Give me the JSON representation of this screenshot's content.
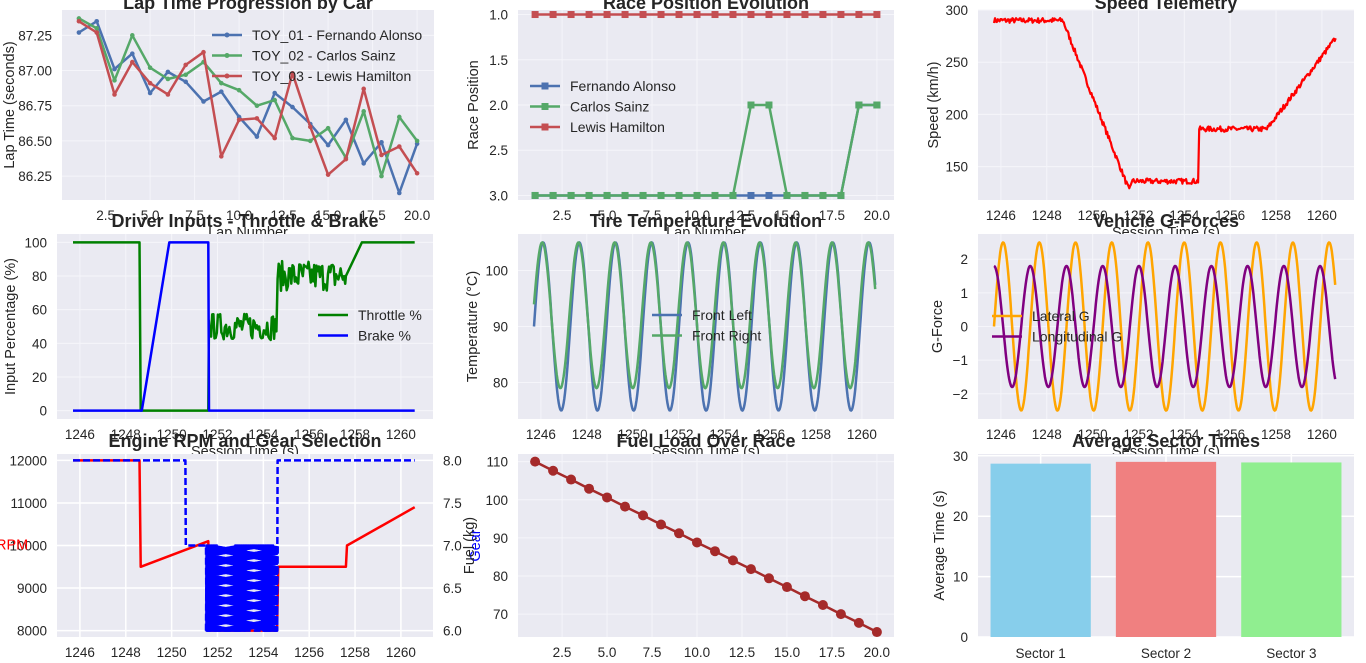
{
  "chart_data": [
    {
      "id": "lap_time",
      "type": "line",
      "title": "Lap Time Progression by Car",
      "xlabel": "Lap Number",
      "ylabel": "Lap Time (seconds)",
      "xlim": [
        0.05,
        20.95
      ],
      "ylim": [
        86.08,
        87.43
      ],
      "xticks": [
        2.5,
        5.0,
        7.5,
        10.0,
        12.5,
        15.0,
        17.5,
        20.0
      ],
      "yticks": [
        86.25,
        86.5,
        86.75,
        87.0,
        87.25
      ],
      "xtick_labels": [
        "2.5",
        "5.0",
        "7.5",
        "10.0",
        "12.5",
        "15.0",
        "17.5",
        "20.0"
      ],
      "ytick_labels": [
        "86.25",
        "86.50",
        "86.75",
        "87.00",
        "87.25"
      ],
      "legend": "top-right",
      "grid": true,
      "x": [
        1,
        2,
        3,
        4,
        5,
        6,
        7,
        8,
        9,
        10,
        11,
        12,
        13,
        14,
        15,
        16,
        17,
        18,
        19,
        20
      ],
      "series": [
        {
          "name": "TOY_01 - Fernando Alonso",
          "color": "#4c72b0",
          "marker": "circle",
          "values": [
            87.27,
            87.35,
            87.01,
            87.12,
            86.84,
            86.99,
            86.92,
            86.78,
            86.85,
            86.67,
            86.53,
            86.84,
            86.74,
            86.62,
            86.47,
            86.65,
            86.34,
            86.49,
            86.13,
            86.48
          ]
        },
        {
          "name": "TOY_02 - Carlos Sainz",
          "color": "#55a868",
          "marker": "circle",
          "values": [
            87.37,
            87.3,
            86.93,
            87.25,
            87.02,
            86.94,
            86.97,
            87.06,
            86.91,
            86.86,
            86.75,
            86.79,
            86.52,
            86.5,
            86.59,
            86.38,
            86.71,
            86.25,
            86.67,
            86.5
          ]
        },
        {
          "name": "TOY_03 - Lewis Hamilton",
          "color": "#c44e52",
          "marker": "circle",
          "values": [
            87.35,
            87.27,
            86.83,
            87.06,
            86.91,
            86.83,
            87.04,
            87.13,
            86.39,
            86.65,
            86.66,
            86.52,
            86.98,
            86.6,
            86.26,
            86.37,
            86.87,
            86.4,
            86.46,
            86.27
          ]
        }
      ]
    },
    {
      "id": "race_position",
      "type": "line",
      "title": "Race Position Evolution",
      "xlabel": "Lap Number",
      "ylabel": "Race Position",
      "xlim": [
        0.05,
        20.95
      ],
      "ylim": [
        3.05,
        0.95
      ],
      "inverted_y": true,
      "xticks": [
        2.5,
        5.0,
        7.5,
        10.0,
        12.5,
        15.0,
        17.5,
        20.0
      ],
      "yticks": [
        1.0,
        1.5,
        2.0,
        2.5,
        3.0
      ],
      "xtick_labels": [
        "2.5",
        "5.0",
        "7.5",
        "10.0",
        "12.5",
        "15.0",
        "17.5",
        "20.0"
      ],
      "ytick_labels": [
        "1.0",
        "1.5",
        "2.0",
        "2.5",
        "3.0"
      ],
      "legend": "center-left",
      "grid": true,
      "x": [
        1,
        2,
        3,
        4,
        5,
        6,
        7,
        8,
        9,
        10,
        11,
        12,
        13,
        14,
        15,
        16,
        17,
        18,
        19,
        20
      ],
      "series": [
        {
          "name": "Fernando Alonso",
          "color": "#4c72b0",
          "marker": "square",
          "values": [
            3,
            3,
            3,
            3,
            3,
            3,
            3,
            3,
            3,
            3,
            3,
            3,
            3,
            3,
            3,
            3,
            3,
            3,
            2,
            2
          ]
        },
        {
          "name": "Carlos Sainz",
          "color": "#55a868",
          "marker": "square",
          "values": [
            3,
            3,
            3,
            3,
            3,
            3,
            3,
            3,
            3,
            3,
            3,
            3,
            2,
            2,
            3,
            3,
            3,
            3,
            2,
            2
          ]
        },
        {
          "name": "Lewis Hamilton",
          "color": "#c44e52",
          "marker": "square",
          "values": [
            1,
            1,
            1,
            1,
            1,
            1,
            1,
            1,
            1,
            1,
            1,
            1,
            1,
            1,
            1,
            1,
            1,
            1,
            1,
            1
          ]
        }
      ]
    },
    {
      "id": "speed",
      "type": "line",
      "title": "Speed Telemetry",
      "xlabel": "Session Time (s)",
      "ylabel": "Speed (km/h)",
      "xlim": [
        1245.0,
        1261.4
      ],
      "ylim": [
        118,
        300
      ],
      "xticks": [
        1246,
        1248,
        1250,
        1252,
        1254,
        1256,
        1258,
        1260
      ],
      "yticks": [
        150,
        200,
        250,
        300
      ],
      "xtick_labels": [
        "1246",
        "1248",
        "1250",
        "1252",
        "1254",
        "1256",
        "1258",
        "1260"
      ],
      "ytick_labels": [
        "150",
        "200",
        "250",
        "300"
      ],
      "grid": true,
      "series": [
        {
          "name": "Speed",
          "color": "#ff0000",
          "points": [
            [
              1245.7,
              290
            ],
            [
              1248.7,
              290
            ],
            [
              1251.6,
              127
            ],
            [
              1251.7,
              136
            ],
            [
              1254.6,
              136
            ],
            [
              1254.65,
              186
            ],
            [
              1257.6,
              186
            ],
            [
              1260.6,
              273
            ]
          ],
          "noise": 2.5
        }
      ]
    },
    {
      "id": "driver_inputs",
      "type": "line",
      "title": "Driver Inputs - Throttle & Brake",
      "xlabel": "Session Time (s)",
      "ylabel": "Input Percentage (%)",
      "xlim": [
        1245.0,
        1261.4
      ],
      "ylim": [
        -5,
        105
      ],
      "xticks": [
        1246,
        1248,
        1250,
        1252,
        1254,
        1256,
        1258,
        1260
      ],
      "yticks": [
        0,
        20,
        40,
        60,
        80,
        100
      ],
      "xtick_labels": [
        "1246",
        "1248",
        "1250",
        "1252",
        "1254",
        "1256",
        "1258",
        "1260"
      ],
      "ytick_labels": [
        "0",
        "20",
        "40",
        "60",
        "80",
        "100"
      ],
      "legend": "center-right",
      "grid": true,
      "series": [
        {
          "name": "Throttle %",
          "color": "#008000",
          "segments": [
            {
              "points": [
                [
                  1245.7,
                  100
                ],
                [
                  1248.6,
                  100
                ],
                [
                  1248.65,
                  0
                ],
                [
                  1251.6,
                  0
                ],
                [
                  1251.62,
                  40
                ]
              ]
            },
            {
              "noisy": true,
              "from": 1251.62,
              "to": 1254.6,
              "center": 50,
              "amp": 8
            },
            {
              "noisy": true,
              "from": 1254.62,
              "to": 1257.6,
              "center": 80,
              "amp": 9
            },
            {
              "points": [
                [
                  1257.6,
                  80
                ],
                [
                  1258.3,
                  100
                ],
                [
                  1260.6,
                  100
                ]
              ]
            }
          ]
        },
        {
          "name": "Brake %",
          "color": "#0000ff",
          "segments": [
            {
              "points": [
                [
                  1245.7,
                  0
                ],
                [
                  1248.7,
                  0
                ],
                [
                  1249.9,
                  100
                ],
                [
                  1251.6,
                  100
                ],
                [
                  1251.63,
                  0
                ],
                [
                  1260.6,
                  0
                ]
              ]
            }
          ]
        }
      ]
    },
    {
      "id": "tire_temp",
      "type": "line",
      "title": "Tire Temperature Evolution",
      "xlabel": "Session Time (s)",
      "ylabel": "Temperature (°C)",
      "xlim": [
        1245.0,
        1261.4
      ],
      "ylim": [
        73.5,
        106.5
      ],
      "xticks": [
        1246,
        1248,
        1250,
        1252,
        1254,
        1256,
        1258,
        1260
      ],
      "yticks": [
        80,
        90,
        100
      ],
      "xtick_labels": [
        "1246",
        "1248",
        "1250",
        "1252",
        "1254",
        "1256",
        "1258",
        "1260"
      ],
      "ytick_labels": [
        "80",
        "90",
        "100"
      ],
      "legend": "center",
      "grid": true,
      "t_range": [
        1245.7,
        1260.6
      ],
      "series": [
        {
          "name": "Front Left",
          "color": "#4c72b0",
          "center": 90,
          "amp": 15,
          "period": 1.58
        },
        {
          "name": "Front Right",
          "color": "#55a868",
          "center": 92,
          "amp": 13,
          "period": 1.58
        }
      ]
    },
    {
      "id": "g_forces",
      "type": "line",
      "title": "Vehicle G-Forces",
      "xlabel": "Session Time (s)",
      "ylabel": "G-Force",
      "xlim": [
        1245.0,
        1261.4
      ],
      "ylim": [
        -2.75,
        2.75
      ],
      "xticks": [
        1246,
        1248,
        1250,
        1252,
        1254,
        1256,
        1258,
        1260
      ],
      "yticks": [
        -2,
        -1,
        0,
        1,
        2
      ],
      "xtick_labels": [
        "1246",
        "1248",
        "1250",
        "1252",
        "1254",
        "1256",
        "1258",
        "1260"
      ],
      "ytick_labels": [
        "−2",
        "−1",
        "0",
        "1",
        "2"
      ],
      "legend": "center-left",
      "grid": true,
      "t_range": [
        1245.7,
        1260.6
      ],
      "series": [
        {
          "name": "Lateral G",
          "color": "#ffa500",
          "amp": 2.5,
          "period": 1.58,
          "phase": "sin"
        },
        {
          "name": "Longitudinal G",
          "color": "#800080",
          "amp": 1.8,
          "period": 1.58,
          "phase": "cos"
        }
      ]
    },
    {
      "id": "rpm_gear",
      "type": "line",
      "title": "Engine RPM and Gear Selection",
      "xlabel": "",
      "ylabel": "RPM",
      "ylabel_right": "Gear",
      "xlim": [
        1245.0,
        1261.4
      ],
      "ylim": [
        7850,
        12150
      ],
      "ylim_right": [
        5.925,
        8.075
      ],
      "xticks": [
        1246,
        1248,
        1250,
        1252,
        1254,
        1256,
        1258,
        1260
      ],
      "yticks": [
        8000,
        9000,
        10000,
        11000,
        12000
      ],
      "yticks_right": [
        6.0,
        6.5,
        7.0,
        7.5,
        8.0
      ],
      "xtick_labels": [
        "1246",
        "1248",
        "1250",
        "1252",
        "1254",
        "1256",
        "1258",
        "1260"
      ],
      "ytick_labels": [
        "8000",
        "9000",
        "10000",
        "11000",
        "12000"
      ],
      "ytick_labels_right": [
        "6.0",
        "6.5",
        "7.0",
        "7.5",
        "8.0"
      ],
      "grid": true,
      "series": [
        {
          "name": "RPM",
          "color": "#ff0000",
          "axis": "left",
          "points": [
            [
              1245.7,
              12000
            ],
            [
              1248.6,
              12000
            ],
            [
              1248.65,
              9500
            ],
            [
              1251.6,
              10100
            ],
            [
              1251.65,
              8000
            ],
            [
              1254.6,
              8000
            ],
            [
              1254.65,
              9500
            ],
            [
              1257.6,
              9500
            ],
            [
              1257.65,
              10000
            ],
            [
              1260.6,
              10900
            ]
          ]
        },
        {
          "name": "Gear",
          "color": "#0000ff",
          "axis": "right",
          "dashed": true,
          "points": [
            [
              1245.7,
              8
            ],
            [
              1250.6,
              8
            ],
            [
              1250.62,
              7
            ],
            [
              1251.5,
              7
            ],
            [
              1251.52,
              6
            ],
            [
              1254.6,
              6
            ],
            [
              1254.62,
              8
            ],
            [
              1260.6,
              8
            ]
          ],
          "oscillating_range": [
            1251.5,
            1254.6
          ]
        }
      ]
    },
    {
      "id": "fuel",
      "type": "line",
      "title": "Fuel Load Over Race",
      "xlabel": "",
      "ylabel": "Fuel (kg)",
      "xlim": [
        0.05,
        20.95
      ],
      "ylim": [
        64,
        112
      ],
      "xticks": [
        2.5,
        5.0,
        7.5,
        10.0,
        12.5,
        15.0,
        17.5,
        20.0
      ],
      "yticks": [
        70,
        80,
        90,
        100,
        110
      ],
      "xtick_labels": [
        "2.5",
        "5.0",
        "7.5",
        "10.0",
        "12.5",
        "15.0",
        "17.5",
        "20.0"
      ],
      "ytick_labels": [
        "70",
        "80",
        "90",
        "100",
        "110"
      ],
      "grid": true,
      "x": [
        1,
        2,
        3,
        4,
        5,
        6,
        7,
        8,
        9,
        10,
        11,
        12,
        13,
        14,
        15,
        16,
        17,
        18,
        19,
        20
      ],
      "series": [
        {
          "name": "Fuel",
          "color": "#a52a2a",
          "marker": "circle",
          "values": [
            110.0,
            107.6,
            105.3,
            102.9,
            100.6,
            98.2,
            95.9,
            93.5,
            91.2,
            88.8,
            86.5,
            84.1,
            81.8,
            79.4,
            77.1,
            74.7,
            72.4,
            70.0,
            67.7,
            65.3
          ]
        }
      ]
    },
    {
      "id": "sector_times",
      "type": "bar",
      "title": "Average Sector Times",
      "xlabel": "",
      "ylabel": "Average Time (s)",
      "ylim": [
        0,
        30.3
      ],
      "yticks": [
        0,
        10,
        20,
        30
      ],
      "ytick_labels": [
        "0",
        "10",
        "20",
        "30"
      ],
      "grid": true,
      "categories": [
        "Sector 1",
        "Sector 2",
        "Sector 3"
      ],
      "values": [
        28.7,
        29.0,
        28.9
      ],
      "colors": [
        "#87ceeb",
        "#f08080",
        "#90ee90"
      ]
    }
  ]
}
